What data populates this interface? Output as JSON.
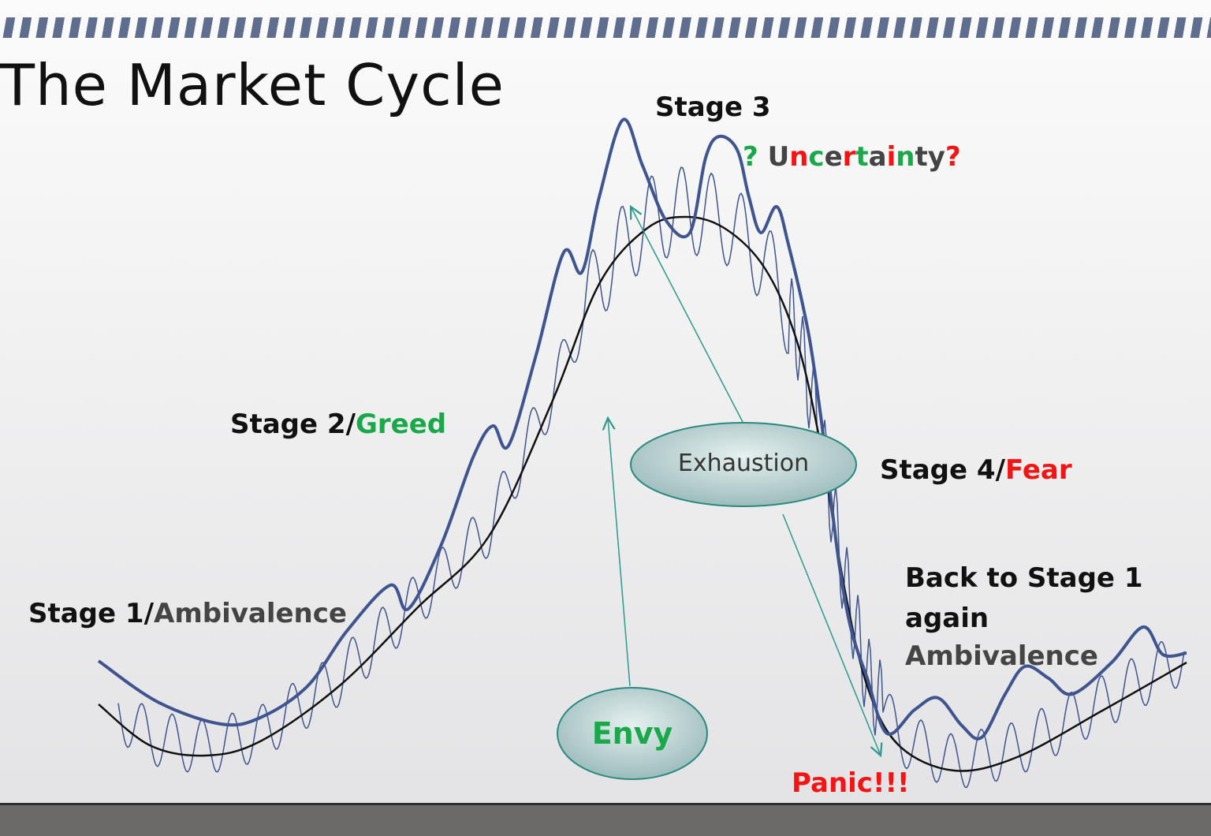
{
  "title": "The Market Cycle",
  "labels": {
    "stage1_prefix": "Stage 1/",
    "stage1_word": "Ambivalence",
    "stage2_prefix": "Stage 2/",
    "stage2_word": "Greed",
    "stage3": "Stage 3",
    "uncertainty": [
      "?",
      " ",
      "U",
      "n",
      "c",
      "e",
      "r",
      "t",
      "a",
      "i",
      "n",
      "t",
      "y",
      "?"
    ],
    "stage4_prefix": "Stage 4/",
    "stage4_word": "Fear",
    "back_line1": "Back to Stage 1",
    "back_line2": "again",
    "back_line3": "Ambivalence",
    "panic": "Panic!!!",
    "exhaustion": "Exhaustion",
    "envy": "Envy"
  },
  "colors": {
    "green": "#1aa84a",
    "red": "#f31414",
    "dark": "#444444",
    "curve": "#3f5590",
    "teal": "#2a9a8c",
    "stripe": "#5f6d8f"
  }
}
